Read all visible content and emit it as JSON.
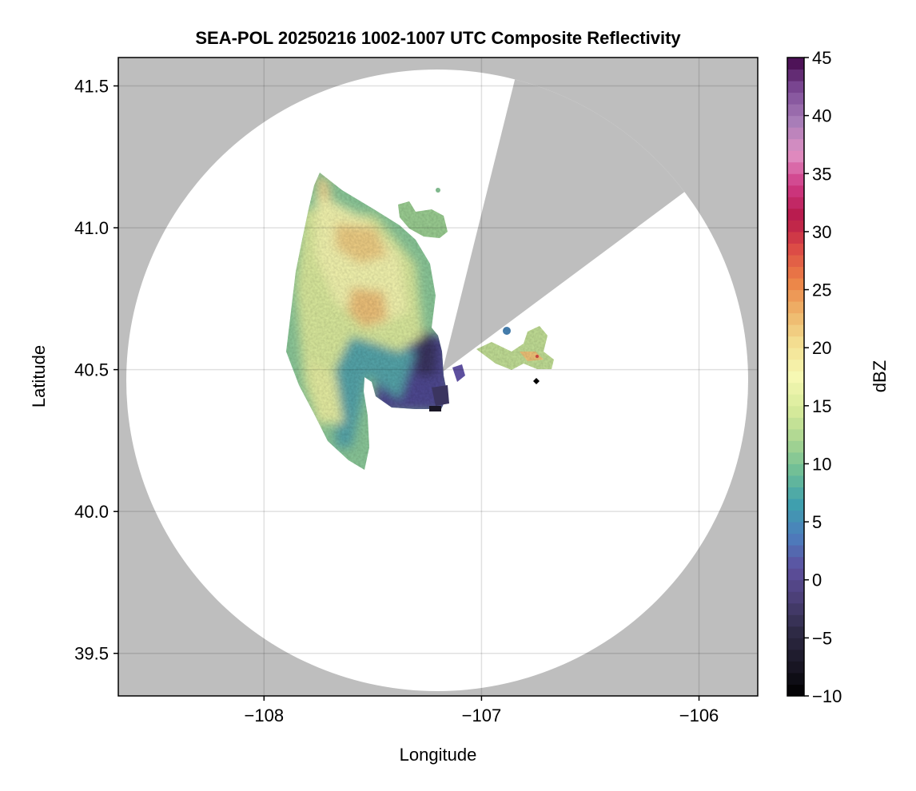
{
  "chart_data": {
    "type": "heatmap",
    "title": "SEA-POL 20250216 1002-1007 UTC Composite Reflectivity",
    "xlabel": "Longitude",
    "ylabel": "Latitude",
    "xlim": [
      -108.67,
      -105.73
    ],
    "ylim": [
      39.35,
      41.6
    ],
    "xticks": [
      -108,
      -107,
      -106
    ],
    "xtick_labels": [
      "−108",
      "−107",
      "−106"
    ],
    "yticks": [
      39.5,
      40.0,
      40.5,
      41.0,
      41.5
    ],
    "ytick_labels": [
      "39.5",
      "40.0",
      "40.5",
      "41.0",
      "41.5"
    ],
    "grid": true,
    "background_color": "#bebebe",
    "radar_coverage_color": "#ffffff",
    "radar_location": [
      -107.18,
      40.49
    ],
    "blocked_sector_azimuth_deg": [
      14,
      53
    ],
    "colorbar": {
      "label": "dBZ",
      "range": [
        -10,
        45
      ],
      "ticks": [
        -10,
        -5,
        0,
        5,
        10,
        15,
        20,
        25,
        30,
        35,
        40,
        45
      ],
      "tick_labels": [
        "−10",
        "−5",
        "0",
        "5",
        "10",
        "15",
        "20",
        "25",
        "30",
        "35",
        "40",
        "45"
      ],
      "colormap": [
        "#000000",
        "#1a1726",
        "#2e2a45",
        "#4a3f74",
        "#5d4f9e",
        "#4d7dbd",
        "#3f9fae",
        "#6cbd97",
        "#a9d591",
        "#d8eb9b",
        "#f6f8b3",
        "#f3e194",
        "#eeb56b",
        "#ec8246",
        "#dc4c46",
        "#b7194a",
        "#cf3a86",
        "#e191c4",
        "#a87db8",
        "#7e4b97",
        "#43064a"
      ]
    },
    "marker": {
      "lon": -106.74,
      "lat": 40.455,
      "shape": "diamond"
    }
  }
}
